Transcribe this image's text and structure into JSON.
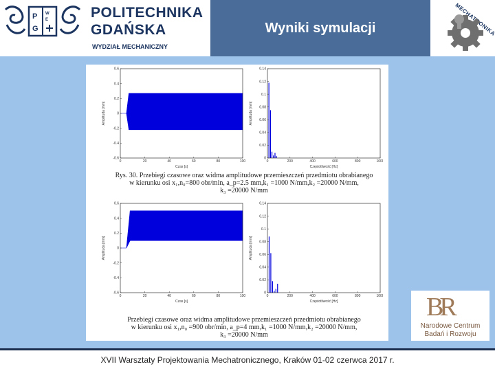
{
  "header": {
    "university_line1": "POLITECHNIKA",
    "university_line2": "GDAŃSKA",
    "department": "WYDZIAŁ MECHANICZNY",
    "emblem_letters": [
      "P",
      "G",
      "W",
      "E"
    ],
    "title": "Wyniki symulacji",
    "mech_logo_text": "MECHATRONIKA"
  },
  "figure": {
    "caption1_line1": "Rys. 30. Przebiegi czasowe oraz widma amplitudowe przemieszczeń przedmiotu obrabianego",
    "caption1_line2": "w kierunku osi x₁,n₀=800 obr/min, a_p=2.5 mm,k₁ =1000 N/mm,k₂ =20000 N/mm,",
    "caption1_line3": "k₃ =20000 N/mm",
    "caption2_line1": "Przebiegi czasowe oraz widma amplitudowe przemieszczeń przedmiotu obrabianego",
    "caption2_line2": "w kierunku osi x₁,n₀ =900 obr/min, a_p=4 mm,k₁ =1000 N/mm,k₂ =20000 N/mm,",
    "caption2_line3": "k₃ =20000 N/mm"
  },
  "logo_ncbr": {
    "letters": "BR",
    "line1": "Narodowe Centrum",
    "line2": "Badań i Rozwoju"
  },
  "footer": {
    "text": "XVII Warsztaty Projektowania Mechatronicznego, Kraków 01-02 czerwca 2017 r."
  },
  "chart_data": [
    {
      "type": "line",
      "xlabel": "Czas [s]",
      "ylabel": "Amplituda [mm]",
      "xlim": [
        0,
        100
      ],
      "ylim": [
        -0.6,
        0.6
      ],
      "x_ticks": [
        0,
        20,
        40,
        60,
        80,
        100
      ],
      "y_ticks": [
        -0.6,
        -0.4,
        -0.2,
        0,
        0.2,
        0.4,
        0.6
      ],
      "series": [
        {
          "x": [
            0,
            5,
            7,
            100
          ],
          "y_min": [
            0,
            0,
            -0.22,
            -0.22
          ],
          "y_max": [
            0,
            0,
            0.27,
            0.27
          ]
        }
      ]
    },
    {
      "type": "bar",
      "xlabel": "Częstotliwość [Hz]",
      "ylabel": "Amplituda [mm]",
      "xlim": [
        0,
        1000
      ],
      "ylim": [
        0,
        0.14
      ],
      "x_ticks": [
        0,
        200,
        400,
        600,
        800,
        1000
      ],
      "y_ticks": [
        0,
        0.02,
        0.04,
        0.06,
        0.08,
        0.1,
        0.12,
        0.14
      ],
      "series": [
        {
          "x": [
            13,
            27,
            40,
            53,
            67,
            80
          ],
          "values": [
            0.118,
            0.075,
            0.01,
            0.004,
            0.008,
            0.003
          ]
        }
      ]
    },
    {
      "type": "line",
      "xlabel": "Czas [s]",
      "ylabel": "Amplituda [mm]",
      "xlim": [
        0,
        100
      ],
      "ylim": [
        -0.6,
        0.6
      ],
      "x_ticks": [
        0,
        20,
        40,
        60,
        80,
        100
      ],
      "y_ticks": [
        -0.6,
        -0.4,
        -0.2,
        0,
        0.2,
        0.4,
        0.6
      ],
      "series": [
        {
          "x": [
            0,
            5,
            8,
            100
          ],
          "y_min": [
            0,
            0,
            0.1,
            0.1
          ],
          "y_max": [
            0,
            0,
            0.5,
            0.5
          ]
        }
      ]
    },
    {
      "type": "bar",
      "xlabel": "Częstotliwość [Hz]",
      "ylabel": "Amplituda [mm]",
      "xlim": [
        0,
        1000
      ],
      "ylim": [
        0,
        0.14
      ],
      "x_ticks": [
        0,
        200,
        400,
        600,
        800,
        1000
      ],
      "y_ticks": [
        0,
        0.02,
        0.04,
        0.06,
        0.08,
        0.1,
        0.12,
        0.14
      ],
      "series": [
        {
          "x": [
            15,
            30,
            45,
            60,
            75,
            90
          ],
          "values": [
            0.088,
            0.062,
            0.018,
            0.003,
            0.006,
            0.014
          ]
        }
      ]
    }
  ]
}
